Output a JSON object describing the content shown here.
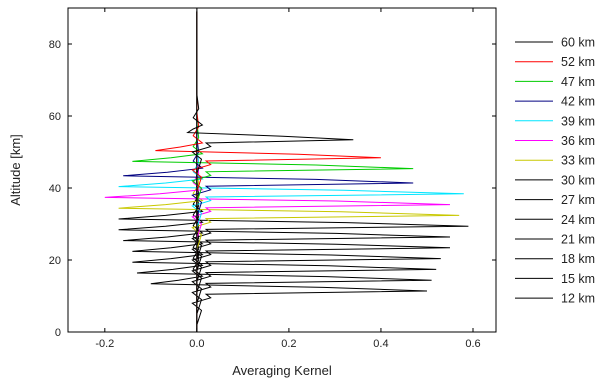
{
  "chart_data": {
    "type": "line",
    "title": "",
    "xlabel": "Averaging Kernel",
    "ylabel": "Altitude [km]",
    "xlim": [
      -0.28,
      0.65
    ],
    "ylim": [
      0,
      90
    ],
    "xticks": [
      -0.2,
      0.0,
      0.2,
      0.4,
      0.6
    ],
    "xtick_labels": [
      "-0.2",
      "0.0",
      "0.2",
      "0.4",
      "0.6"
    ],
    "yticks": [
      0,
      20,
      40,
      60,
      80
    ],
    "ytick_labels": [
      "0",
      "20",
      "40",
      "60",
      "80"
    ],
    "grid": false,
    "legend_position": "right",
    "series": [
      {
        "name": "60 km",
        "color": "#000000",
        "peak": 0.34,
        "alt": 54,
        "min": -0.02
      },
      {
        "name": "52 km",
        "color": "#ff0000",
        "peak": 0.4,
        "alt": 49,
        "min": -0.09
      },
      {
        "name": "47 km",
        "color": "#00cc00",
        "peak": 0.47,
        "alt": 46,
        "min": -0.14
      },
      {
        "name": "42 km",
        "color": "#000080",
        "peak": 0.47,
        "alt": 42,
        "min": -0.16
      },
      {
        "name": "39 km",
        "color": "#00e5ff",
        "peak": 0.58,
        "alt": 39,
        "min": -0.17
      },
      {
        "name": "36 km",
        "color": "#ff00ff",
        "peak": 0.55,
        "alt": 36,
        "min": -0.2
      },
      {
        "name": "33 km",
        "color": "#c8c800",
        "peak": 0.57,
        "alt": 33,
        "min": -0.17
      },
      {
        "name": "30 km",
        "color": "#000000",
        "peak": 0.59,
        "alt": 30,
        "min": -0.17
      },
      {
        "name": "27 km",
        "color": "#000000",
        "peak": 0.55,
        "alt": 27,
        "min": -0.17
      },
      {
        "name": "24 km",
        "color": "#000000",
        "peak": 0.55,
        "alt": 24,
        "min": -0.16
      },
      {
        "name": "21 km",
        "color": "#000000",
        "peak": 0.53,
        "alt": 21,
        "min": -0.14
      },
      {
        "name": "18 km",
        "color": "#000000",
        "peak": 0.52,
        "alt": 18,
        "min": -0.14
      },
      {
        "name": "15 km",
        "color": "#000000",
        "peak": 0.51,
        "alt": 15,
        "min": -0.13
      },
      {
        "name": "12 km",
        "color": "#000000",
        "peak": 0.5,
        "alt": 12,
        "min": -0.1
      }
    ]
  }
}
